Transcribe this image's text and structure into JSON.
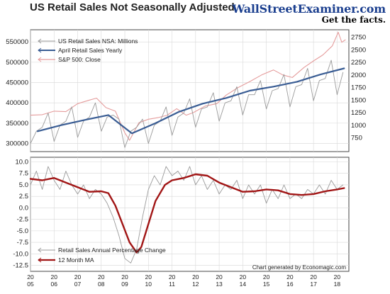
{
  "title": "US Retail Sales Not Seasonally Adjusted",
  "brand": {
    "name": "WallStreetExaminer.com",
    "tagline": "Get the facts."
  },
  "credit": "Chart generated by Economagic.com",
  "colors": {
    "nsa": "#9a9a9a",
    "yearly": "#3a5d94",
    "sp500": "#e59c9c",
    "ma": "#a11515",
    "grid": "#d8d8d8"
  },
  "chart_data": [
    {
      "type": "line",
      "panel": "top",
      "y_left": {
        "ticks": [
          300000,
          350000,
          400000,
          450000,
          500000,
          550000
        ],
        "labels": [
          "300000",
          "350000",
          "400000",
          "450000",
          "500000",
          "550000"
        ],
        "range": [
          280000,
          580000
        ]
      },
      "y_right": {
        "ticks": [
          750,
          1000,
          1250,
          1500,
          1750,
          2000,
          2250,
          2500,
          2750
        ],
        "labels": [
          "750",
          "1000",
          "1250",
          "1500",
          "1750",
          "2000",
          "2250",
          "2500",
          "2750"
        ],
        "range": [
          475,
          2900
        ]
      },
      "legend": [
        "US Retail Sales NSA: Millions",
        "April Retail Sales Yearly",
        "S&P 500: Close"
      ],
      "series": [
        {
          "name": "US Retail Sales NSA: Millions",
          "axis": "left",
          "x": [
            2005.0,
            2005.25,
            2005.5,
            2005.75,
            2006.0,
            2006.25,
            2006.5,
            2006.75,
            2007.0,
            2007.25,
            2007.5,
            2007.75,
            2008.0,
            2008.25,
            2008.5,
            2008.75,
            2009.0,
            2009.25,
            2009.5,
            2009.75,
            2010.0,
            2010.25,
            2010.5,
            2010.75,
            2011.0,
            2011.25,
            2011.5,
            2011.75,
            2012.0,
            2012.25,
            2012.5,
            2012.75,
            2013.0,
            2013.25,
            2013.5,
            2013.75,
            2014.0,
            2014.25,
            2014.5,
            2014.75,
            2015.0,
            2015.25,
            2015.5,
            2015.75,
            2016.0,
            2016.25,
            2016.5,
            2016.75,
            2017.0,
            2017.25,
            2017.5,
            2017.75,
            2018.0,
            2018.25
          ],
          "values": [
            300000,
            330000,
            340000,
            375000,
            305000,
            345000,
            355000,
            390000,
            315000,
            355000,
            365000,
            400000,
            330000,
            365000,
            370000,
            360000,
            290000,
            330000,
            340000,
            360000,
            300000,
            345000,
            355000,
            390000,
            320000,
            365000,
            375000,
            410000,
            340000,
            385000,
            390000,
            425000,
            355000,
            400000,
            405000,
            440000,
            370000,
            420000,
            420000,
            455000,
            385000,
            430000,
            435000,
            470000,
            390000,
            440000,
            445000,
            485000,
            405000,
            455000,
            460000,
            505000,
            420000,
            475000
          ]
        },
        {
          "name": "April Retail Sales Yearly",
          "axis": "left",
          "x": [
            2005.3,
            2006.3,
            2007.3,
            2008.3,
            2009.3,
            2010.3,
            2011.3,
            2012.3,
            2013.3,
            2014.3,
            2015.3,
            2016.3,
            2017.3,
            2018.3
          ],
          "values": [
            330000,
            345000,
            358000,
            370000,
            325000,
            350000,
            378000,
            398000,
            412000,
            430000,
            440000,
            452000,
            470000,
            485000
          ]
        },
        {
          "name": "S&P 500: Close",
          "axis": "right",
          "x": [
            2005.0,
            2005.5,
            2006.0,
            2006.5,
            2007.0,
            2007.5,
            2007.8,
            2008.2,
            2008.6,
            2009.0,
            2009.2,
            2009.6,
            2010.0,
            2010.4,
            2010.8,
            2011.2,
            2011.6,
            2011.9,
            2012.4,
            2012.9,
            2013.3,
            2013.8,
            2014.3,
            2014.8,
            2015.3,
            2015.7,
            2016.1,
            2016.6,
            2017.0,
            2017.4,
            2017.8,
            2018.05,
            2018.2,
            2018.35
          ],
          "values": [
            1200,
            1210,
            1280,
            1270,
            1430,
            1500,
            1540,
            1350,
            1280,
            850,
            700,
            1050,
            1120,
            1150,
            1200,
            1330,
            1200,
            1250,
            1380,
            1430,
            1600,
            1750,
            1870,
            2000,
            2100,
            2000,
            1950,
            2150,
            2280,
            2400,
            2580,
            2850,
            2650,
            2700
          ]
        }
      ]
    },
    {
      "type": "line",
      "panel": "bottom",
      "y_left": {
        "ticks": [
          -12.5,
          -10.0,
          -7.5,
          -5.0,
          -2.5,
          0.0,
          2.5,
          5.0,
          7.5,
          10.0
        ],
        "labels": [
          "-12.5",
          "-10.0",
          "-7.5",
          "-5.0",
          "-2.5",
          "0.0",
          "2.5",
          "5.0",
          "7.5",
          "10.0"
        ],
        "range": [
          -13.8,
          11.0
        ]
      },
      "x_ticks": [
        "2005",
        "2006",
        "2007",
        "2008",
        "2009",
        "2010",
        "2011",
        "2012",
        "2013",
        "2014",
        "2015",
        "2016",
        "2017",
        "2018"
      ],
      "x_range": [
        2005,
        2018.5
      ],
      "legend": [
        "Retail Sales Annual Percentage Change",
        "12 Month MA"
      ],
      "series": [
        {
          "name": "Retail Sales Annual Percentage Change",
          "x": [
            2005.0,
            2005.25,
            2005.5,
            2005.75,
            2006.0,
            2006.25,
            2006.5,
            2006.75,
            2007.0,
            2007.25,
            2007.5,
            2007.75,
            2008.0,
            2008.25,
            2008.5,
            2008.75,
            2009.0,
            2009.25,
            2009.5,
            2009.75,
            2010.0,
            2010.25,
            2010.5,
            2010.75,
            2011.0,
            2011.25,
            2011.5,
            2011.75,
            2012.0,
            2012.25,
            2012.5,
            2012.75,
            2013.0,
            2013.25,
            2013.5,
            2013.75,
            2014.0,
            2014.25,
            2014.5,
            2014.75,
            2015.0,
            2015.25,
            2015.5,
            2015.75,
            2016.0,
            2016.25,
            2016.5,
            2016.75,
            2017.0,
            2017.25,
            2017.5,
            2017.75,
            2018.0,
            2018.25
          ],
          "values": [
            5,
            8,
            4,
            9,
            6,
            4,
            8,
            5,
            3,
            5,
            2,
            4,
            3,
            1,
            -2,
            -6,
            -11,
            -12,
            -9,
            -2,
            4,
            7,
            5,
            9,
            7,
            8,
            6,
            9,
            5,
            7,
            4,
            6,
            3,
            5,
            4,
            6,
            2,
            5,
            3,
            5,
            1,
            4,
            2,
            5,
            2,
            3,
            2,
            4,
            3,
            5,
            3,
            6,
            4,
            5
          ]
        },
        {
          "name": "12 Month MA",
          "x": [
            2005.0,
            2005.5,
            2006.0,
            2006.5,
            2007.0,
            2007.5,
            2008.0,
            2008.3,
            2008.6,
            2008.9,
            2009.2,
            2009.5,
            2009.7,
            2010.0,
            2010.3,
            2010.7,
            2011.0,
            2011.5,
            2012.0,
            2012.5,
            2013.0,
            2013.5,
            2014.0,
            2014.5,
            2015.0,
            2015.5,
            2016.0,
            2016.5,
            2017.0,
            2017.5,
            2018.0,
            2018.3
          ],
          "values": [
            6.3,
            6.0,
            6.5,
            5.5,
            4.5,
            3.5,
            3.6,
            3.2,
            0.5,
            -3.5,
            -7.5,
            -9.7,
            -8.5,
            -3.5,
            1.5,
            5.0,
            6.0,
            6.5,
            7.3,
            7.0,
            5.5,
            4.5,
            3.5,
            3.6,
            4.0,
            3.8,
            3.0,
            2.8,
            3.0,
            3.6,
            4.0,
            4.3
          ]
        }
      ]
    }
  ]
}
